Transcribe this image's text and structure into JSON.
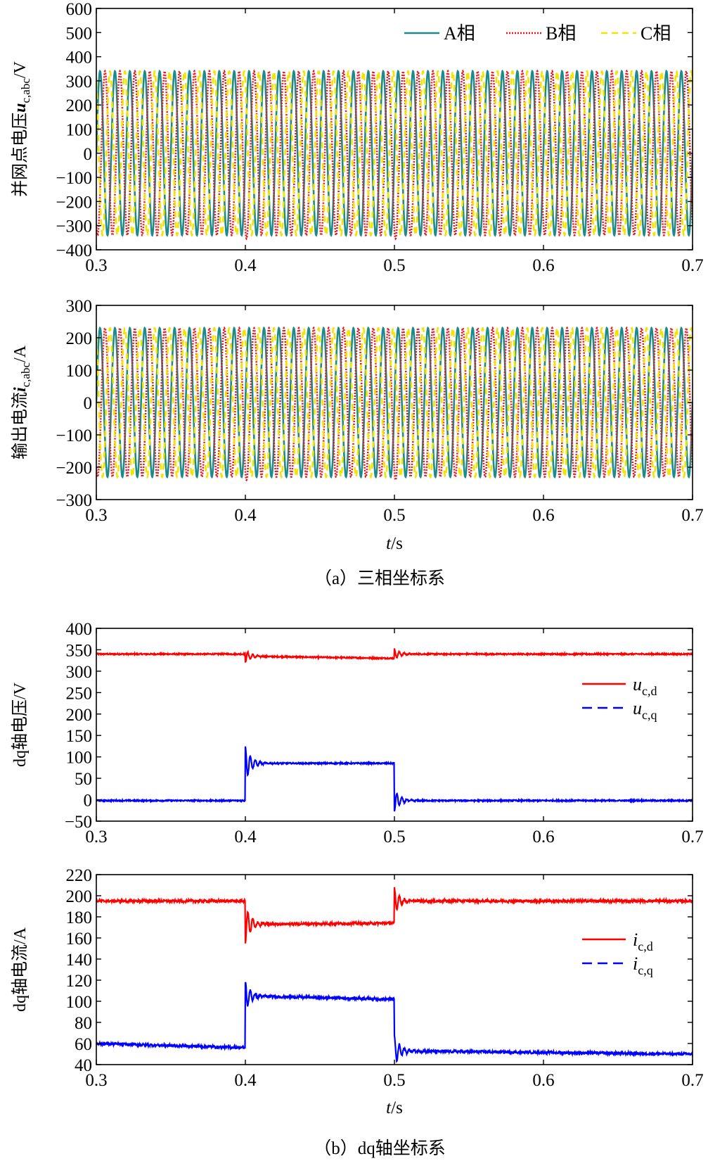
{
  "chart_data": [
    {
      "type": "line",
      "id": "voltage-abc",
      "ylabel_prefix": "并网点电压",
      "ylabel_symbol": "u",
      "ylabel_sub": "c,abc",
      "ylabel_unit": "/V",
      "xlabel": "",
      "xlim": [
        0.3,
        0.7
      ],
      "ylim": [
        -400,
        600
      ],
      "x_ticks": [
        "0.3",
        "0.4",
        "0.5",
        "0.6",
        "0.7"
      ],
      "y_ticks": [
        "600",
        "500",
        "400",
        "300",
        "200",
        "100",
        "0",
        "−100",
        "−200",
        "−300",
        "−400"
      ],
      "frequency_hz": 100,
      "amplitude": 340,
      "dip_times": [
        0.4,
        0.5
      ],
      "legend_position": "top-right",
      "series": [
        {
          "name": "A相",
          "color": "#1f8a8a",
          "dash": "solid",
          "phase_deg": 0
        },
        {
          "name": "B相",
          "color": "#e8141e",
          "dash": "dotted",
          "phase_deg": -120
        },
        {
          "name": "C相",
          "color": "#f2e400",
          "dash": "dashed",
          "phase_deg": 120
        }
      ]
    },
    {
      "type": "line",
      "id": "current-abc",
      "ylabel_prefix": "输出电流",
      "ylabel_symbol": "i",
      "ylabel_sub": "c,abc",
      "ylabel_unit": "/A",
      "xlabel_italic": "t",
      "xlabel_unit": "/s",
      "xlim": [
        0.3,
        0.7
      ],
      "ylim": [
        -300,
        300
      ],
      "x_ticks": [
        "0.3",
        "0.4",
        "0.5",
        "0.6",
        "0.7"
      ],
      "y_ticks": [
        "300",
        "200",
        "100",
        "0",
        "−100",
        "−200",
        "−300"
      ],
      "frequency_hz": 100,
      "amplitude": 230,
      "dip_times": [
        0.4,
        0.5
      ],
      "series": [
        {
          "name": "A相",
          "color": "#1f8a8a",
          "dash": "solid",
          "phase_deg": 0
        },
        {
          "name": "B相",
          "color": "#e8141e",
          "dash": "dotted",
          "phase_deg": -120
        },
        {
          "name": "C相",
          "color": "#f2e400",
          "dash": "dashed",
          "phase_deg": 120
        }
      ]
    },
    {
      "type": "line",
      "id": "voltage-dq",
      "ylabel_plain": "dq轴电压/V",
      "xlim": [
        0.3,
        0.7
      ],
      "ylim": [
        -50,
        400
      ],
      "x_ticks": [
        "0.3",
        "0.4",
        "0.5",
        "0.6",
        "0.7"
      ],
      "y_ticks": [
        "400",
        "350",
        "300",
        "250",
        "200",
        "150",
        "100",
        "50",
        "0",
        "−50"
      ],
      "legend_position": "right",
      "series": [
        {
          "name_symbol": "u",
          "name_sub": "c,d",
          "color": "#ff0000",
          "dash": "solid",
          "segments": [
            [
              0.3,
              0.4,
              340,
              340
            ],
            [
              0.4,
              0.5,
              335,
              330
            ],
            [
              0.5,
              0.7,
              340,
              340
            ]
          ],
          "noise": 1.5,
          "transients": [
            [
              0.4,
              14,
              -1
            ],
            [
              0.5,
              12,
              1
            ]
          ]
        },
        {
          "name_symbol": "u",
          "name_sub": "c,q",
          "color": "#0000ff",
          "dash": "dashed",
          "segments": [
            [
              0.3,
              0.4,
              -2,
              -2
            ],
            [
              0.4,
              0.5,
              85,
              85
            ],
            [
              0.5,
              0.7,
              -2,
              -2
            ]
          ],
          "noise": 1.5,
          "transients": [
            [
              0.4,
              40,
              1
            ],
            [
              0.5,
              25,
              -1
            ]
          ]
        }
      ]
    },
    {
      "type": "line",
      "id": "current-dq",
      "ylabel_plain": "dq轴电流/A",
      "xlabel_italic": "t",
      "xlabel_unit": "/s",
      "xlim": [
        0.3,
        0.7
      ],
      "ylim": [
        40,
        220
      ],
      "x_ticks": [
        "0.3",
        "0.4",
        "0.5",
        "0.6",
        "0.7"
      ],
      "y_ticks": [
        "220",
        "200",
        "180",
        "160",
        "140",
        "120",
        "100",
        "80",
        "60",
        "40"
      ],
      "legend_position": "right",
      "series": [
        {
          "name_symbol": "i",
          "name_sub": "c,d",
          "color": "#ff0000",
          "dash": "solid",
          "segments": [
            [
              0.3,
              0.4,
              195,
              195
            ],
            [
              0.4,
              0.5,
              173,
              174
            ],
            [
              0.5,
              0.7,
              195,
              195
            ]
          ],
          "noise": 1.2,
          "transients": [
            [
              0.4,
              18,
              -1
            ],
            [
              0.5,
              12,
              1
            ]
          ]
        },
        {
          "name_symbol": "i",
          "name_sub": "c,q",
          "color": "#0000ff",
          "dash": "dashed",
          "segments": [
            [
              0.3,
              0.4,
              60,
              56
            ],
            [
              0.4,
              0.5,
              105,
              102
            ],
            [
              0.5,
              0.7,
              53,
              50
            ]
          ],
          "noise": 1.2,
          "transients": [
            [
              0.4,
              14,
              1
            ],
            [
              0.5,
              14,
              1
            ]
          ]
        }
      ]
    }
  ],
  "captions": {
    "a": "（a）三相坐标系",
    "b": "（b）dq轴坐标系"
  }
}
